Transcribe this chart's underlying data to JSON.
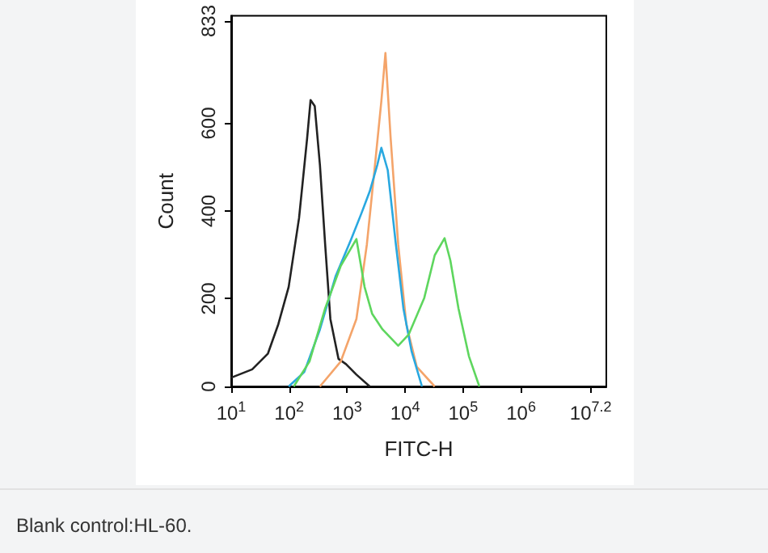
{
  "chart_data": {
    "type": "line",
    "xlabel": "FITC-H",
    "ylabel": "Count",
    "annotations": [
      "Blank control:HL-60."
    ],
    "log": "x",
    "xlim": [
      10,
      29500000
    ],
    "xticks": [
      {
        "value": 10,
        "label": "10$^{1}$"
      },
      {
        "value": 100,
        "label": "10$^{2}$"
      },
      {
        "value": 1000,
        "label": "10$^{3}$"
      },
      {
        "value": 10000,
        "label": "10$^{4}$"
      },
      {
        "value": 100000,
        "label": "10$^{5}$"
      },
      {
        "value": 1000000,
        "label": "10$^{6}$"
      },
      {
        "value": 15848932,
        "label": "10$^{7.2}$"
      }
    ],
    "ylim": [
      0,
      845
    ],
    "yticks": [
      0,
      200,
      400,
      600,
      833
    ],
    "grid": false,
    "marker": "none",
    "line_style": "solid",
    "series": [
      {
        "color": "#222222",
        "x": [
          10,
          23,
          43,
          65,
          98,
          148,
          204,
          234,
          276,
          339,
          417,
          513,
          708,
          955,
          1445,
          2455
        ],
        "values": [
          20,
          39,
          75,
          142,
          227,
          384,
          566,
          653,
          639,
          505,
          324,
          154,
          63,
          51,
          27,
          0
        ]
      },
      {
        "color": "#f4a46a",
        "x": [
          339,
          776,
          1445,
          2188,
          3020,
          3890,
          4571,
          5623,
          7586,
          10470,
          15850,
          32360
        ],
        "values": [
          0,
          57,
          154,
          324,
          505,
          651,
          760,
          566,
          324,
          142,
          45,
          0
        ]
      },
      {
        "color": "#29a8e0",
        "x": [
          98,
          182,
          339,
          631,
          1175,
          1778,
          2455,
          3311,
          3890,
          5012,
          6918,
          9333,
          12880,
          19500
        ],
        "values": [
          0,
          33,
          130,
          251,
          336,
          396,
          445,
          505,
          544,
          493,
          324,
          178,
          81,
          0
        ]
      },
      {
        "color": "#5ed65e",
        "x": [
          120,
          224,
          417,
          776,
          1445,
          1995,
          2692,
          4074,
          7586,
          11480,
          21380,
          32360,
          47860,
          60260,
          83180,
          125900,
          190500
        ],
        "values": [
          0,
          57,
          178,
          275,
          336,
          227,
          166,
          130,
          93,
          118,
          202,
          299,
          338,
          287,
          178,
          69,
          0
        ]
      }
    ]
  }
}
